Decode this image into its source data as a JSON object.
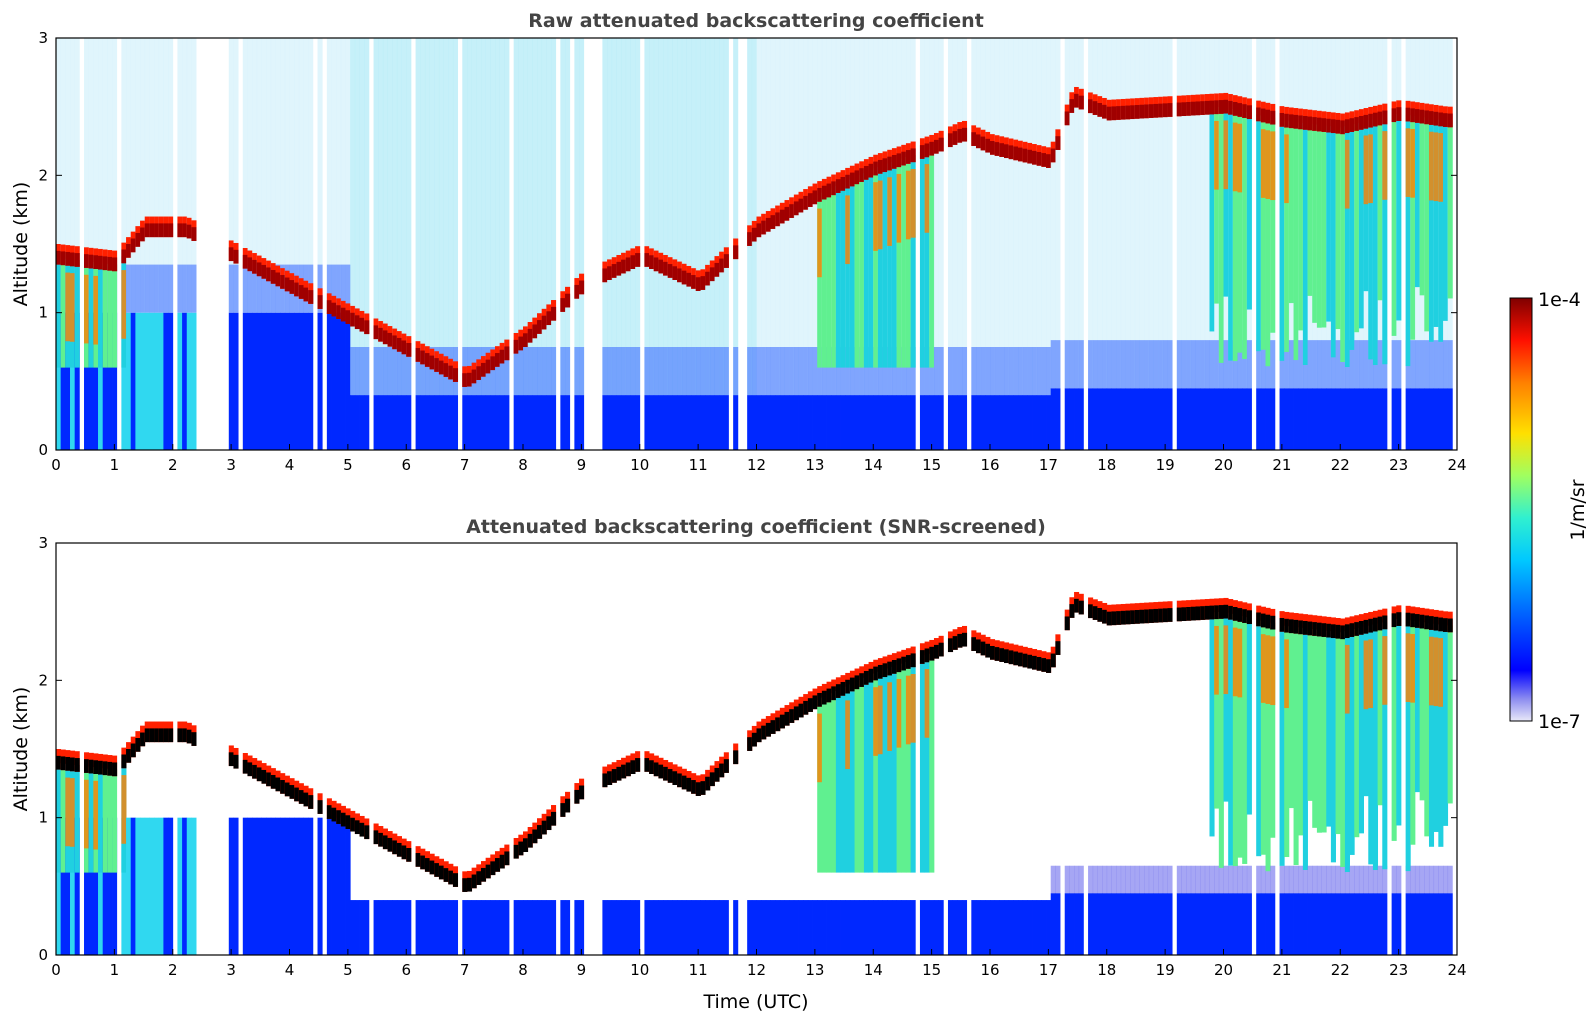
{
  "chart_data": [
    {
      "type": "heatmap",
      "title": "Raw attenuated backscattering coefficient",
      "xlabel": "",
      "ylabel": "Altitude (km)",
      "xlim": [
        0,
        24
      ],
      "ylim": [
        0,
        3
      ],
      "xticks": [
        "0",
        "1",
        "2",
        "3",
        "4",
        "5",
        "6",
        "7",
        "8",
        "9",
        "10",
        "11",
        "12",
        "13",
        "14",
        "15",
        "16",
        "17",
        "18",
        "19",
        "20",
        "21",
        "22",
        "23",
        "24"
      ],
      "yticks": [
        "0",
        "1",
        "2",
        "3"
      ],
      "cloud_layer_km": [
        [
          0.0,
          1.4
        ],
        [
          1.0,
          1.35
        ],
        [
          1.5,
          1.6
        ],
        [
          2.2,
          1.6
        ],
        [
          7.0,
          0.5
        ],
        [
          8.0,
          0.8
        ],
        [
          9.0,
          1.2
        ],
        [
          10.0,
          1.4
        ],
        [
          11.0,
          1.2
        ],
        [
          12.0,
          1.6
        ],
        [
          13.0,
          1.85
        ],
        [
          14.0,
          2.05
        ],
        [
          15.0,
          2.2
        ],
        [
          15.5,
          2.3
        ],
        [
          16.0,
          2.2
        ],
        [
          17.0,
          2.1
        ],
        [
          17.4,
          2.55
        ],
        [
          18.0,
          2.45
        ],
        [
          20.0,
          2.5
        ],
        [
          21.0,
          2.4
        ],
        [
          22.0,
          2.35
        ],
        [
          23.0,
          2.45
        ],
        [
          23.8,
          2.4
        ]
      ]
    },
    {
      "type": "heatmap",
      "title": "Attenuated backscattering coefficient (SNR-screened)",
      "xlabel": "Time (UTC)",
      "ylabel": "Altitude (km)",
      "xlim": [
        0,
        24
      ],
      "ylim": [
        0,
        3
      ],
      "xticks": [
        "0",
        "1",
        "2",
        "3",
        "4",
        "5",
        "6",
        "7",
        "8",
        "9",
        "10",
        "11",
        "12",
        "13",
        "14",
        "15",
        "16",
        "17",
        "18",
        "19",
        "20",
        "21",
        "22",
        "23",
        "24"
      ],
      "yticks": [
        "0",
        "1",
        "2",
        "3"
      ]
    }
  ],
  "colorbar": {
    "label": "1/m/sr",
    "min_label": "1e-7",
    "max_label": "1e-4",
    "scale": "log",
    "range": [
      1e-07,
      0.0001
    ],
    "colors": [
      "#e8e8f8",
      "#b8b8f0",
      "#7070f0",
      "#0000ff",
      "#0040ff",
      "#0090ff",
      "#00d0ff",
      "#30f0d0",
      "#80ff80",
      "#d0ff30",
      "#ffe000",
      "#ff9000",
      "#ff3000",
      "#d00000",
      "#800000"
    ]
  }
}
